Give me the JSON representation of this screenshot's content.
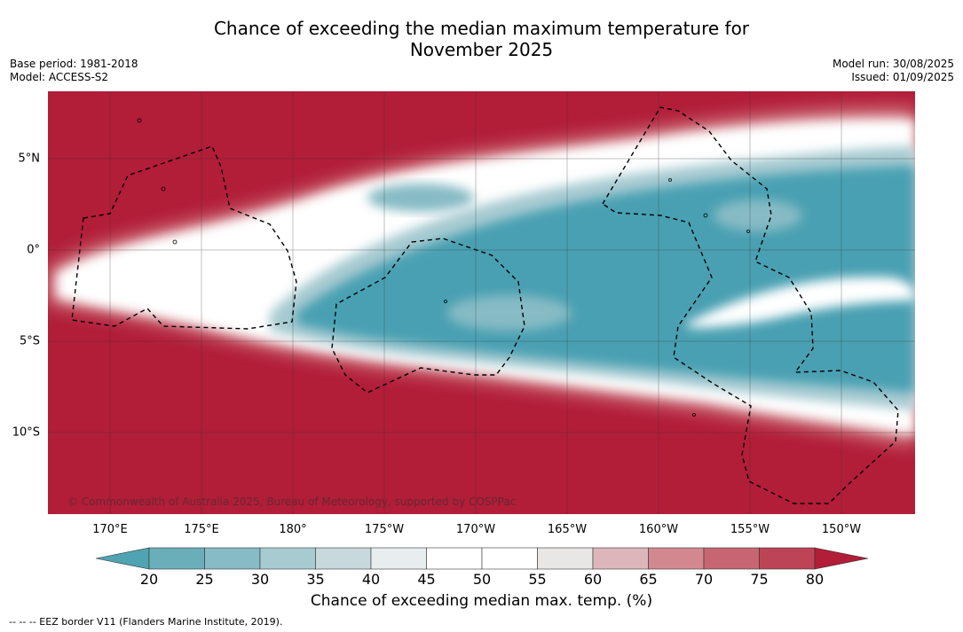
{
  "header": {
    "title_line1": "Chance of exceeding the median maximum temperature for",
    "title_line2": "November 2025",
    "base_period": "Base period: 1981-2018",
    "model": "Model: ACCESS-S2",
    "model_run": "Model run: 30/08/2025",
    "issued": "Issued: 01/09/2025"
  },
  "map": {
    "lon_labels": [
      "170°E",
      "175°E",
      "180°",
      "175°W",
      "170°W",
      "165°W",
      "160°W",
      "155°W",
      "150°W"
    ],
    "lat_labels": [
      "5°N",
      "0°",
      "5°S",
      "10°S"
    ],
    "copyright": "© Commonwealth of Australia 2025, Bureau of Meteorology, supported by COSPPac",
    "colors": {
      "hot": "#b21d38",
      "cool": "#4aa0b2",
      "neutral": "#ffffff"
    }
  },
  "colorbar": {
    "ticks": [
      "20",
      "25",
      "30",
      "35",
      "40",
      "45",
      "50",
      "55",
      "60",
      "65",
      "70",
      "75",
      "80"
    ],
    "colors": [
      "#4fa3b2",
      "#6aaeba",
      "#87bbc5",
      "#a8cbd2",
      "#c8d9de",
      "#e8eef0",
      "#ffffff",
      "#ffffff",
      "#e9e6e6",
      "#ddb6bc",
      "#d3888f",
      "#c76672",
      "#bd4456",
      "#b21d38"
    ],
    "label": "Chance of exceeding median max. temp. (%)"
  },
  "footer": {
    "eez_note": "-- -- -- EEZ border V11 (Flanders Marine Institute, 2019)."
  }
}
